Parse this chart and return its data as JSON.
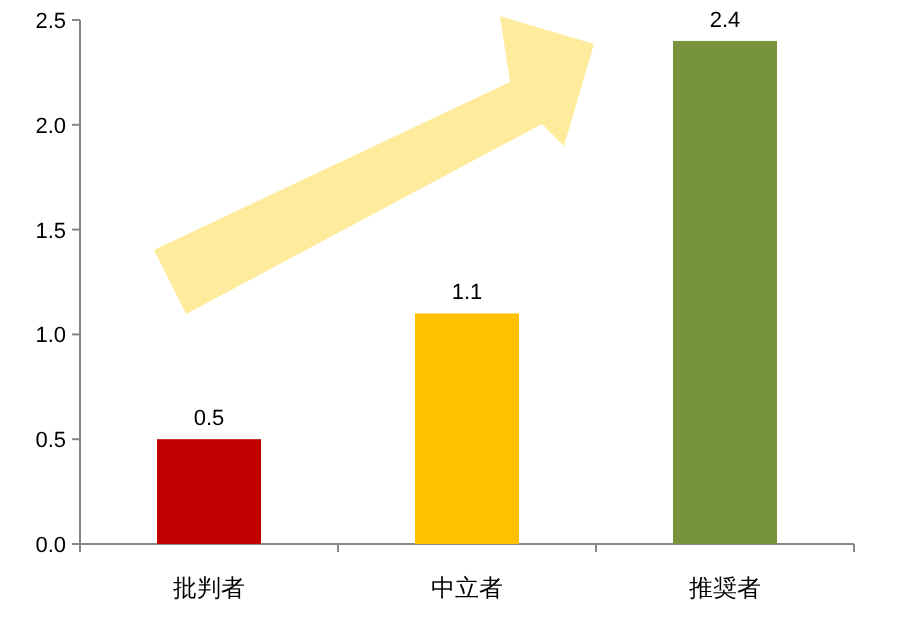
{
  "chart_data": {
    "type": "bar",
    "categories": [
      "批判者",
      "中立者",
      "推奨者"
    ],
    "values": [
      0.5,
      1.1,
      2.4
    ],
    "colors": [
      "#c00000",
      "#ffc000",
      "#77933c"
    ],
    "ylim": [
      0,
      2.5
    ],
    "yticks": [
      {
        "value": 0,
        "label": "0.0"
      },
      {
        "value": 0.5,
        "label": "0.5"
      },
      {
        "value": 1,
        "label": "1.0"
      },
      {
        "value": 1.5,
        "label": "1.5"
      },
      {
        "value": 2,
        "label": "2.0"
      },
      {
        "value": 2.5,
        "label": "2.5"
      }
    ],
    "data_labels": true,
    "grid": false
  }
}
